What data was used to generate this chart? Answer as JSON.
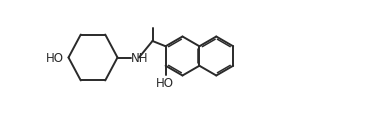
{
  "bg_color": "#ffffff",
  "line_color": "#2a2a2a",
  "line_width": 1.4,
  "font_size": 8.5,
  "figsize": [
    3.81,
    1.16
  ],
  "dpi": 100,
  "xlim": [
    0,
    3.81
  ],
  "ylim": [
    0,
    1.16
  ],
  "ho_left": "HO",
  "ho_bottom": "HO",
  "nh_label": "NH"
}
